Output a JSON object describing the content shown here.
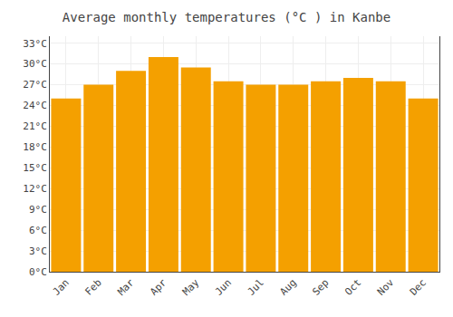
{
  "chart_data": {
    "type": "bar",
    "title": "Average monthly temperatures (°C ) in Kanbe",
    "categories": [
      "Jan",
      "Feb",
      "Mar",
      "Apr",
      "May",
      "Jun",
      "Jul",
      "Aug",
      "Sep",
      "Oct",
      "Nov",
      "Dec"
    ],
    "values": [
      25.0,
      27.0,
      29.0,
      31.0,
      29.5,
      27.5,
      27.0,
      27.0,
      27.5,
      28.0,
      27.5,
      25.0
    ],
    "color": "#F4A000",
    "ylim": [
      0,
      34
    ],
    "yticks": [
      {
        "value": 0,
        "label": "0°C"
      },
      {
        "value": 3,
        "label": "3°C"
      },
      {
        "value": 6,
        "label": "6°C"
      },
      {
        "value": 9,
        "label": "9°C"
      },
      {
        "value": 12,
        "label": "12°C"
      },
      {
        "value": 15,
        "label": "15°C"
      },
      {
        "value": 18,
        "label": "18°C"
      },
      {
        "value": 21,
        "label": "21°C"
      },
      {
        "value": 24,
        "label": "24°C"
      },
      {
        "value": 27,
        "label": "27°C"
      },
      {
        "value": 30,
        "label": "30°C"
      },
      {
        "value": 33,
        "label": "33°C"
      }
    ],
    "grid": true
  }
}
